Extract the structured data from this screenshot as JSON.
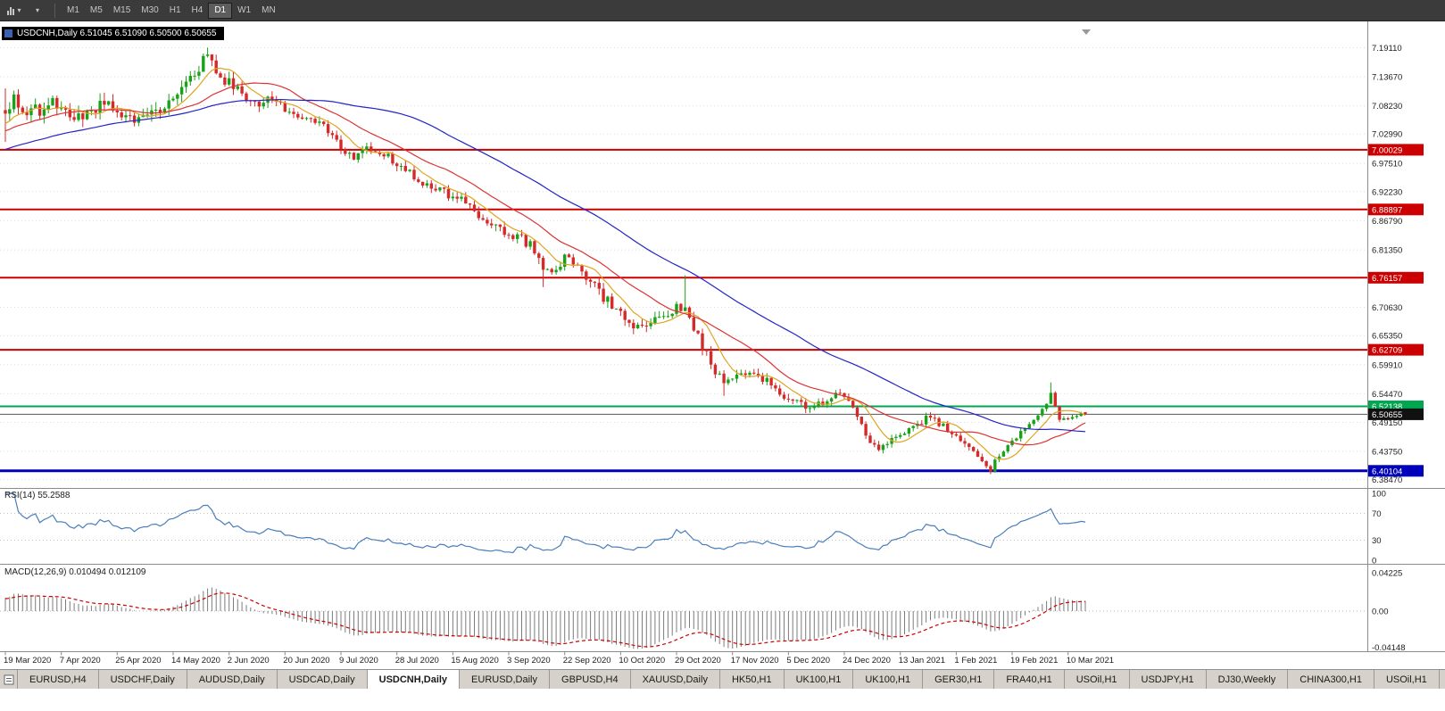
{
  "toolbar": {
    "timeframes": [
      "M1",
      "M5",
      "M15",
      "M30",
      "H1",
      "H4",
      "D1",
      "W1",
      "MN"
    ],
    "active_timeframe": "D1"
  },
  "chart": {
    "symbol": "USDCNH",
    "period": "Daily",
    "title_text": "USDCNH,Daily 6.51045 6.51090 6.50500 6.50655"
  },
  "rsi": {
    "label": "RSI(14)",
    "value": "55.2588"
  },
  "macd": {
    "label": "MACD(12,26,9)",
    "value_main": "0.010494",
    "value_signal": "0.012109"
  },
  "tabbar": {
    "active": "USDCNH,Daily",
    "tabs": [
      "EURUSD,H4",
      "USDCHF,Daily",
      "AUDUSD,Daily",
      "USDCAD,Daily",
      "USDCNH,Daily",
      "EURUSD,Daily",
      "GBPUSD,H4",
      "XAUUSD,Daily",
      "HK50,H1",
      "UK100,H1",
      "UK100,H1",
      "GER30,H1",
      "FRA40,H1",
      "USOil,H1",
      "USDJPY,H1",
      "DJ30,Weekly",
      "CHINA300,H1",
      "USOil,H1"
    ]
  },
  "chart_data": {
    "type": "candlestick",
    "symbol": "USDCNH",
    "timeframe": "Daily",
    "bar_count": 252,
    "last_bar": {
      "o": 6.51045,
      "h": 6.5109,
      "l": 6.505,
      "c": 6.50655
    },
    "bid": {
      "v": 6.50655,
      "label": "6.50655",
      "color": "#111111"
    },
    "x_labels": [
      "19 Mar 2020",
      "7 Apr 2020",
      "25 Apr 2020",
      "14 May 2020",
      "2 Jun 2020",
      "20 Jun 2020",
      "9 Jul 2020",
      "28 Jul 2020",
      "15 Aug 2020",
      "3 Sep 2020",
      "22 Sep 2020",
      "10 Oct 2020",
      "29 Oct 2020",
      "17 Nov 2020",
      "5 Dec 2020",
      "24 Dec 2020",
      "13 Jan 2021",
      "1 Feb 2021",
      "19 Feb 2021",
      "10 Mar 2021"
    ],
    "y_ticks": [
      {
        "v": 7.1911,
        "label": "7.19110"
      },
      {
        "v": 7.1367,
        "label": "7.13670"
      },
      {
        "v": 7.0823,
        "label": "7.08230"
      },
      {
        "v": 7.0299,
        "label": "7.02990"
      },
      {
        "v": 6.9751,
        "label": "6.97510"
      },
      {
        "v": 6.9223,
        "label": "6.92230"
      },
      {
        "v": 6.8679,
        "label": "6.86790"
      },
      {
        "v": 6.8135,
        "label": "6.81350"
      },
      {
        "v": 6.7063,
        "label": "6.70630"
      },
      {
        "v": 6.6535,
        "label": "6.65350"
      },
      {
        "v": 6.5991,
        "label": "6.59910"
      },
      {
        "v": 6.5447,
        "label": "6.54470"
      },
      {
        "v": 6.4915,
        "label": "6.49150"
      },
      {
        "v": 6.4375,
        "label": "6.43750"
      },
      {
        "v": 6.3847,
        "label": "6.38470"
      }
    ],
    "hlines": [
      {
        "v": 7.00029,
        "label": "7.00029",
        "color": "#cc0000",
        "w": 2
      },
      {
        "v": 6.88897,
        "label": "6.88897",
        "color": "#cc0000",
        "w": 2
      },
      {
        "v": 6.76157,
        "label": "6.76157",
        "color": "#cc0000",
        "w": 2
      },
      {
        "v": 6.62709,
        "label": "6.62709",
        "color": "#cc0000",
        "w": 2
      },
      {
        "v": 6.52138,
        "label": "6.52138",
        "color": "#00a650",
        "w": 2
      },
      {
        "v": 6.40104,
        "label": "6.40104",
        "color": "#0000bb",
        "w": 3
      }
    ],
    "close_anchors": [
      [
        0,
        7.055
      ],
      [
        2,
        7.1
      ],
      [
        5,
        7.065
      ],
      [
        8,
        7.075
      ],
      [
        10,
        7.095
      ],
      [
        13,
        7.08
      ],
      [
        16,
        7.055
      ],
      [
        19,
        7.06
      ],
      [
        23,
        7.095
      ],
      [
        26,
        7.07
      ],
      [
        29,
        7.055
      ],
      [
        32,
        7.075
      ],
      [
        36,
        7.06
      ],
      [
        39,
        7.095
      ],
      [
        42,
        7.12
      ],
      [
        45,
        7.155
      ],
      [
        47,
        7.175
      ],
      [
        49,
        7.145
      ],
      [
        52,
        7.125
      ],
      [
        55,
        7.11
      ],
      [
        58,
        7.085
      ],
      [
        61,
        7.095
      ],
      [
        65,
        7.075
      ],
      [
        69,
        7.065
      ],
      [
        73,
        7.055
      ],
      [
        76,
        7.025
      ],
      [
        78,
        7.005
      ],
      [
        81,
        6.99
      ],
      [
        84,
        7.005
      ],
      [
        87,
        6.995
      ],
      [
        91,
        6.975
      ],
      [
        94,
        6.955
      ],
      [
        97,
        6.94
      ],
      [
        100,
        6.925
      ],
      [
        104,
        6.915
      ],
      [
        107,
        6.9
      ],
      [
        110,
        6.875
      ],
      [
        113,
        6.855
      ],
      [
        117,
        6.845
      ],
      [
        120,
        6.835
      ],
      [
        123,
        6.815
      ],
      [
        125,
        6.775
      ],
      [
        127,
        6.78
      ],
      [
        130,
        6.795
      ],
      [
        133,
        6.78
      ],
      [
        136,
        6.76
      ],
      [
        139,
        6.725
      ],
      [
        143,
        6.695
      ],
      [
        146,
        6.665
      ],
      [
        149,
        6.675
      ],
      [
        152,
        6.69
      ],
      [
        156,
        6.705
      ],
      [
        158,
        6.71
      ],
      [
        161,
        6.65
      ],
      [
        164,
        6.6
      ],
      [
        167,
        6.565
      ],
      [
        170,
        6.575
      ],
      [
        174,
        6.585
      ],
      [
        178,
        6.565
      ],
      [
        182,
        6.535
      ],
      [
        186,
        6.52
      ],
      [
        190,
        6.53
      ],
      [
        193,
        6.54
      ],
      [
        195,
        6.545
      ],
      [
        197,
        6.525
      ],
      [
        200,
        6.465
      ],
      [
        203,
        6.44
      ],
      [
        207,
        6.47
      ],
      [
        211,
        6.48
      ],
      [
        214,
        6.5
      ],
      [
        217,
        6.49
      ],
      [
        220,
        6.475
      ],
      [
        223,
        6.455
      ],
      [
        226,
        6.425
      ],
      [
        229,
        6.405
      ],
      [
        232,
        6.44
      ],
      [
        235,
        6.465
      ],
      [
        238,
        6.49
      ],
      [
        241,
        6.515
      ],
      [
        243,
        6.545
      ],
      [
        245,
        6.5
      ],
      [
        247,
        6.495
      ],
      [
        249,
        6.505
      ],
      [
        251,
        6.50655
      ]
    ],
    "vol_anchors": [
      [
        0,
        0.03
      ],
      [
        40,
        0.026
      ],
      [
        60,
        0.02
      ],
      [
        100,
        0.018
      ],
      [
        130,
        0.022
      ],
      [
        160,
        0.02
      ],
      [
        200,
        0.014
      ],
      [
        230,
        0.013
      ],
      [
        251,
        0.008
      ]
    ],
    "wick_spikes": [
      {
        "i": 0,
        "h": 7.115,
        "l": 7.015
      },
      {
        "i": 47,
        "h": 7.191
      },
      {
        "i": 125,
        "l": 6.744
      },
      {
        "i": 158,
        "h": 6.766
      },
      {
        "i": 167,
        "l": 6.541
      },
      {
        "i": 229,
        "l": 6.3955
      },
      {
        "i": 243,
        "h": 6.566
      }
    ],
    "moving_averages": [
      {
        "period": 8,
        "color_key": "ma_fast"
      },
      {
        "period": 21,
        "color_key": "ma_mid"
      },
      {
        "period": 55,
        "color_key": "ma_slow"
      }
    ],
    "rsi_panel": {
      "period": 14,
      "current": 55.2588,
      "levels": [
        70,
        30
      ],
      "axis": [
        {
          "v": 100,
          "label": "100"
        },
        {
          "v": 70,
          "label": "70"
        },
        {
          "v": 30,
          "label": "30"
        },
        {
          "v": 0,
          "label": "0"
        }
      ]
    },
    "macd_panel": {
      "fast": 12,
      "slow": 26,
      "signal": 9,
      "current_main": 0.010494,
      "current_signal": 0.012109,
      "axis": [
        {
          "v": 0.04225,
          "label": "0.04225"
        },
        {
          "v": 0,
          "label": "0.00"
        },
        {
          "v": -0.04148,
          "label": "-0.04148"
        }
      ]
    },
    "colors": {
      "up": "#1aa11a",
      "down": "#d42a2a",
      "ma_fast": "#dfa520",
      "ma_mid": "#dd3333",
      "ma_slow": "#2424c8",
      "rsi": "#4a7ebb",
      "macd_hist": "#7c7c7c",
      "macd_signal": "#cc0000"
    }
  }
}
